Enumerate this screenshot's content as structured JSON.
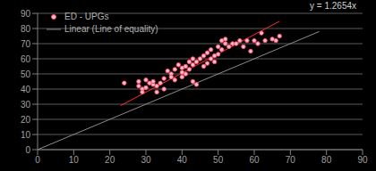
{
  "chart_data": {
    "type": "scatter",
    "xlim": [
      0,
      90
    ],
    "xticks": [
      0,
      10,
      20,
      30,
      40,
      50,
      60,
      70,
      80,
      90
    ],
    "ylim": [
      0,
      90
    ],
    "yticks": [
      0,
      10,
      20,
      30,
      40,
      50,
      60,
      70,
      80,
      90
    ],
    "grid": true,
    "legend": "top-left",
    "series": [
      {
        "name": "ED - UPGs",
        "type": "scatter",
        "color": "#ff4d6d",
        "marker": "circle",
        "x": [
          24,
          28,
          28,
          29,
          29,
          30,
          30,
          31,
          32,
          32,
          33,
          33,
          34,
          35,
          35,
          36,
          37,
          37,
          38,
          38,
          39,
          40,
          40,
          40,
          41,
          41,
          42,
          42,
          43,
          43,
          44,
          45,
          43,
          46,
          46,
          47,
          47,
          48,
          48,
          49,
          49,
          50,
          50,
          51,
          51,
          52,
          52,
          53,
          54,
          55,
          56,
          57,
          58,
          59,
          60,
          61,
          62,
          63,
          65,
          66,
          67,
          44
        ],
        "values": [
          44,
          45,
          42,
          40,
          38,
          46,
          41,
          44,
          43,
          45,
          42,
          38,
          44,
          40,
          47,
          52,
          50,
          48,
          46,
          53,
          56,
          51,
          48,
          54,
          55,
          50,
          53,
          58,
          56,
          60,
          58,
          60,
          45,
          62,
          55,
          57,
          64,
          60,
          66,
          58,
          62,
          63,
          68,
          72,
          66,
          70,
          73,
          68,
          70,
          70,
          72,
          68,
          72,
          65,
          72,
          70,
          77,
          72,
          73,
          72,
          75,
          43
        ]
      },
      {
        "name": "Linear (Line of equality)",
        "type": "line",
        "color": "#8c8c8c",
        "line_style": "solid",
        "x": [
          0,
          78
        ],
        "values": [
          0,
          78
        ]
      }
    ],
    "trendline": {
      "label": "y = 1.2654x",
      "color": "#ff2a2a",
      "x": [
        23,
        67
      ],
      "values": [
        29.1,
        84.8
      ]
    }
  }
}
